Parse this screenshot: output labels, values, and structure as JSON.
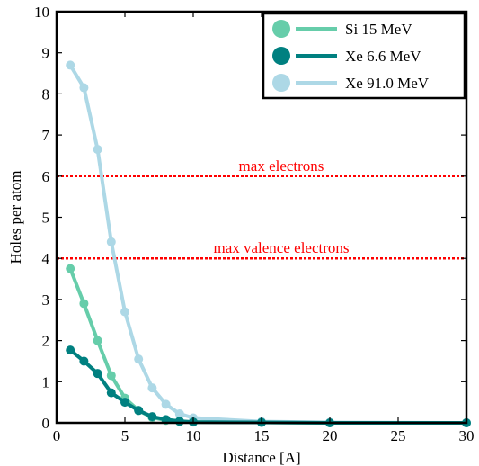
{
  "chart_data": {
    "type": "line",
    "title": "",
    "xlabel": "Distance [A]",
    "ylabel": "Holes per atom",
    "xlim": [
      0,
      30
    ],
    "ylim": [
      0,
      10
    ],
    "xticks": [
      0,
      5,
      10,
      15,
      20,
      25,
      30
    ],
    "yticks": [
      0,
      1,
      2,
      3,
      4,
      5,
      6,
      7,
      8,
      9,
      10
    ],
    "grid": false,
    "legend_position": "top-right",
    "series": [
      {
        "name": "Si 15 MeV",
        "color": "#66cdaa",
        "x": [
          1,
          2,
          3,
          4,
          5,
          6,
          7,
          8,
          9,
          10,
          15,
          20,
          30
        ],
        "y": [
          3.75,
          2.9,
          2.0,
          1.15,
          0.6,
          0.3,
          0.13,
          0.06,
          0.03,
          0.02,
          0.01,
          0.0,
          0.0
        ]
      },
      {
        "name": "Xe 6.6 MeV",
        "color": "#008080",
        "x": [
          1,
          2,
          3,
          4,
          5,
          6,
          7,
          8,
          9,
          10,
          15,
          20,
          30
        ],
        "y": [
          1.77,
          1.5,
          1.2,
          0.73,
          0.5,
          0.3,
          0.15,
          0.08,
          0.04,
          0.02,
          0.01,
          0.0,
          0.0
        ]
      },
      {
        "name": "Xe 91.0 MeV",
        "color": "#add8e6",
        "x": [
          1,
          2,
          3,
          4,
          5,
          6,
          7,
          8,
          9,
          10,
          15,
          20,
          30
        ],
        "y": [
          8.7,
          8.15,
          6.65,
          4.4,
          2.7,
          1.55,
          0.85,
          0.45,
          0.22,
          0.12,
          0.03,
          0.01,
          0.0
        ]
      }
    ],
    "reference_lines": [
      {
        "y": 6,
        "label": "max electrons",
        "color": "#ff0000"
      },
      {
        "y": 4,
        "label": "max valence electrons",
        "color": "#ff0000"
      }
    ]
  }
}
